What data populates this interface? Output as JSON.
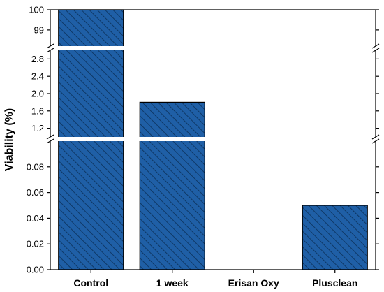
{
  "chart_data": {
    "type": "bar",
    "categories": [
      "Control",
      "1 week",
      "Erisan Oxy",
      "Plusclean"
    ],
    "values": [
      100,
      1.8,
      0,
      0.05
    ],
    "ylabel": "Viability (%)",
    "xlabel": "",
    "y_axis_breaks": [
      {
        "range": [
          0,
          0.1
        ],
        "ticks": [
          "0.00",
          "0.02",
          "0.04",
          "0.06",
          "0.08"
        ]
      },
      {
        "range": [
          1.0,
          3.0
        ],
        "ticks": [
          "1.2",
          "1.6",
          "2.0",
          "2.4",
          "2.8"
        ]
      },
      {
        "range": [
          98.2,
          100
        ],
        "ticks": [
          "99",
          "100"
        ]
      }
    ],
    "bar_color": "#1f5fa6",
    "bar_pattern": "diagonal hatch",
    "grid": false,
    "legend": "none"
  }
}
